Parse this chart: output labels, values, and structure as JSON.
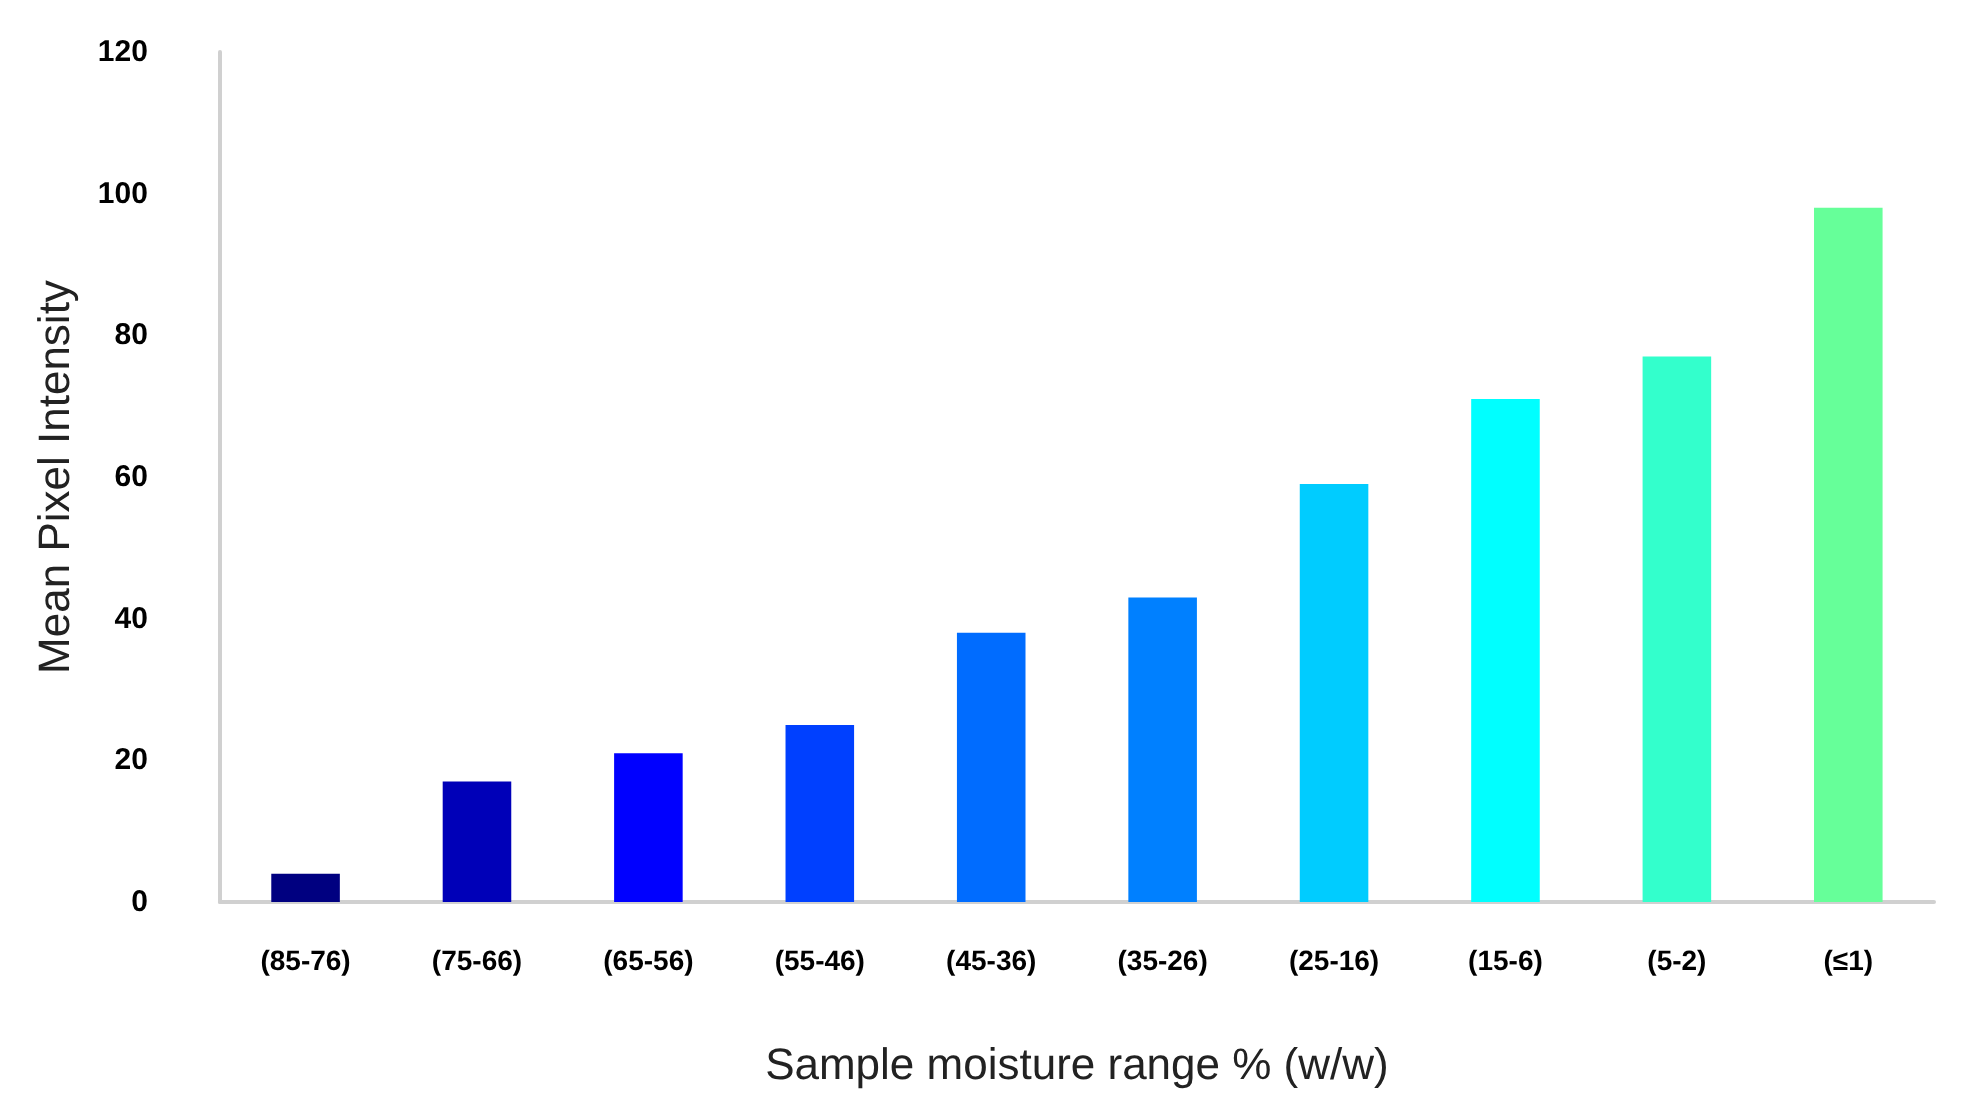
{
  "chart_data": {
    "type": "bar",
    "xlabel": "Sample moisture range % (w/w)",
    "ylabel": "Mean Pixel Intensity",
    "categories": [
      "(85-76)",
      "(75-66)",
      "(65-56)",
      "(55-46)",
      "(45-36)",
      "(35-26)",
      "(25-16)",
      "(15-6)",
      "(5-2)",
      "(≤1)"
    ],
    "values": [
      4,
      17,
      21,
      25,
      38,
      43,
      59,
      71,
      77,
      98
    ],
    "colors": [
      "#000080",
      "#0000b8",
      "#0000ff",
      "#0040ff",
      "#006cff",
      "#0080ff",
      "#00ccff",
      "#00ffff",
      "#33ffcc",
      "#66ff99"
    ],
    "ylim": [
      0,
      120
    ],
    "yticks": [
      0,
      20,
      40,
      60,
      80,
      100,
      120
    ],
    "grid": false
  }
}
